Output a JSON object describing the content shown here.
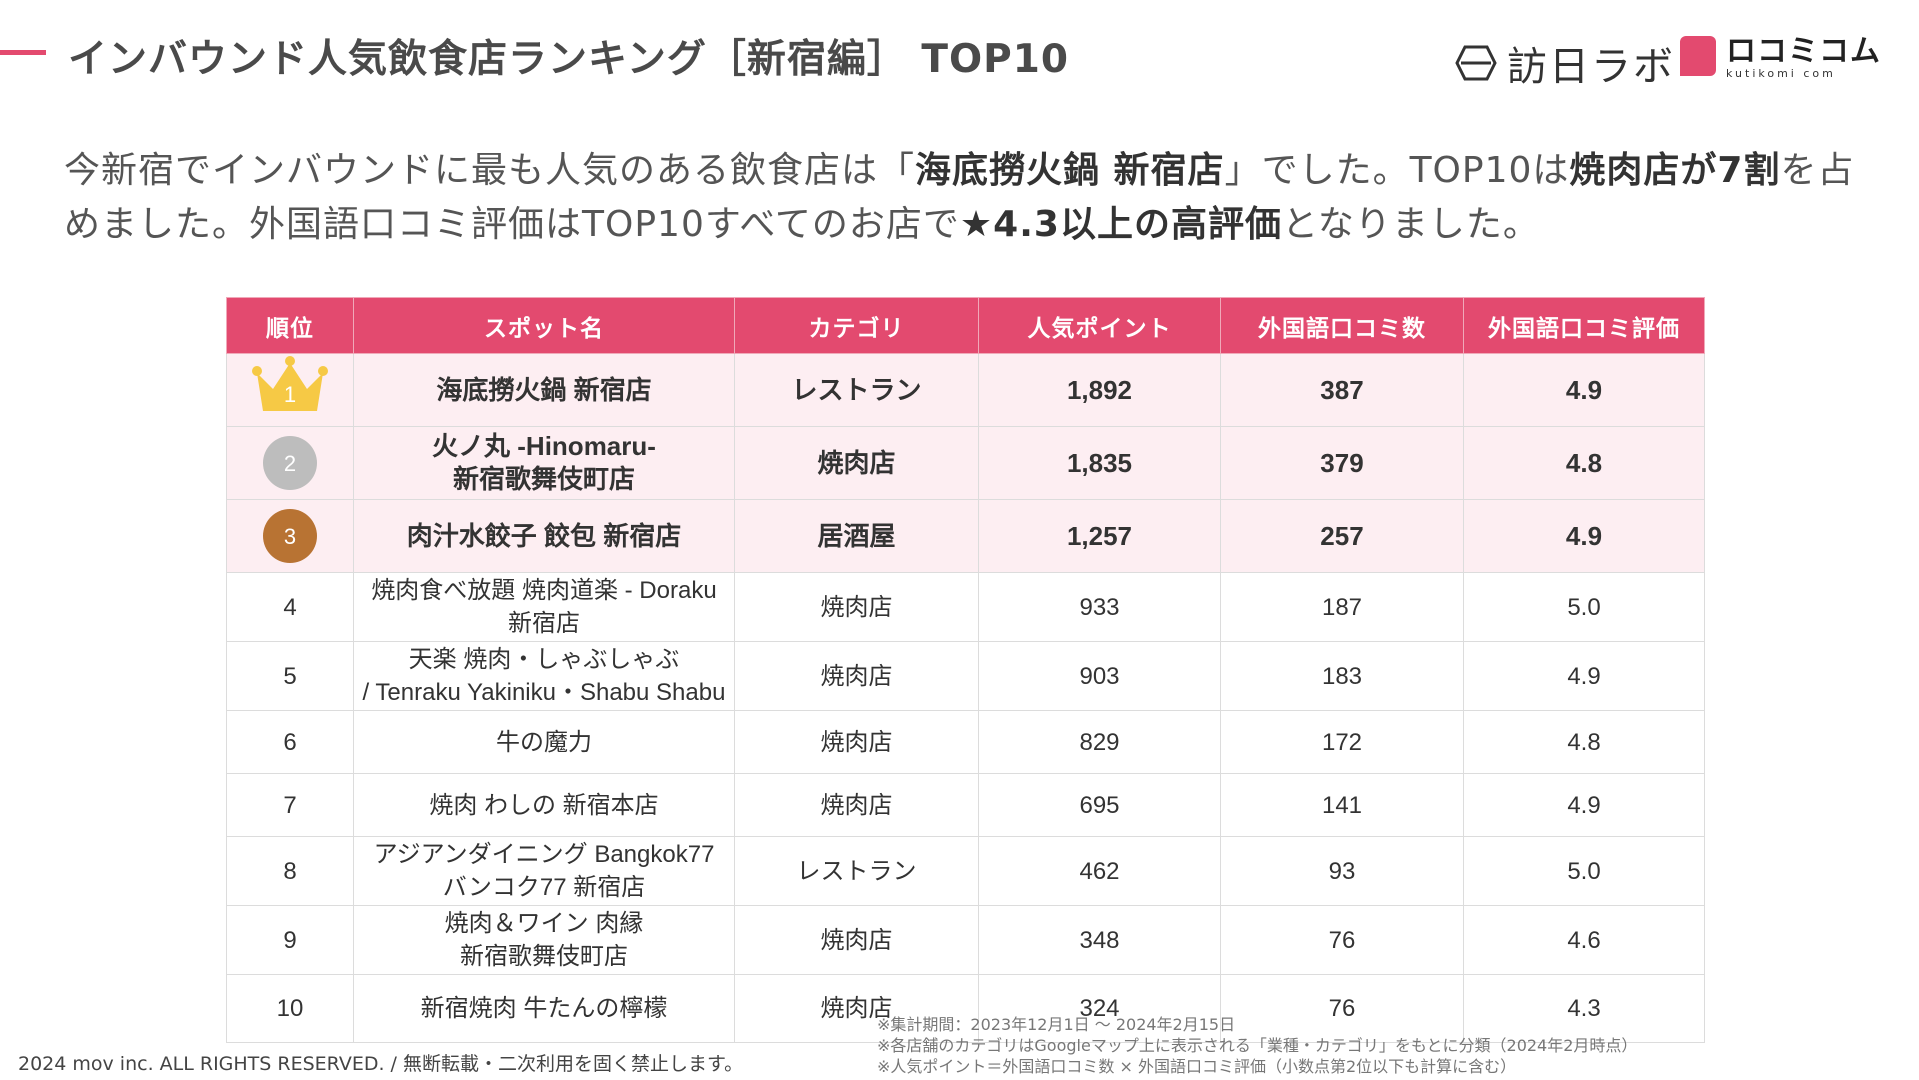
{
  "header": {
    "title": "インバウンド人気飲食店ランキング［新宿編］ TOP10",
    "logo_houlab": "訪日ラボ",
    "logo_kutikomi_main": "ロコミコム",
    "logo_kutikomi_sub": "kutikomi com"
  },
  "summary": {
    "p1": "今新宿でインバウンドに最も人気のある飲食店は「",
    "b1": "海底撈火鍋 新宿店",
    "p2": "」でした。TOP10は",
    "b2": "焼肉店が7割",
    "p3": "を占めました。外国語口コミ評価はTOP10すべてのお店で",
    "b3": "★4.3以上の高評価",
    "p4": "となりました。"
  },
  "table": {
    "headers": [
      "順位",
      "スポット名",
      "カテゴリ",
      "人気ポイント",
      "外国語口コミ数",
      "外国語口コミ評価"
    ],
    "rows": [
      {
        "rank": "1",
        "name_l1": "海底撈火鍋 新宿店",
        "name_l2": "",
        "category": "レストラン",
        "points": "1,892",
        "reviews": "387",
        "rating": "4.9"
      },
      {
        "rank": "2",
        "name_l1": "火ノ丸 -Hinomaru-",
        "name_l2": "新宿歌舞伎町店",
        "category": "焼肉店",
        "points": "1,835",
        "reviews": "379",
        "rating": "4.8"
      },
      {
        "rank": "3",
        "name_l1": "肉汁水餃子 餃包 新宿店",
        "name_l2": "",
        "category": "居酒屋",
        "points": "1,257",
        "reviews": "257",
        "rating": "4.9"
      },
      {
        "rank": "4",
        "name_l1": "焼肉食べ放題 焼肉道楽 - Doraku",
        "name_l2": "新宿店",
        "category": "焼肉店",
        "points": "933",
        "reviews": "187",
        "rating": "5.0"
      },
      {
        "rank": "5",
        "name_l1": "天楽 焼肉・しゃぶしゃぶ",
        "name_l2": "/ Tenraku Yakiniku・Shabu Shabu",
        "category": "焼肉店",
        "points": "903",
        "reviews": "183",
        "rating": "4.9"
      },
      {
        "rank": "6",
        "name_l1": "牛の魔力",
        "name_l2": "",
        "category": "焼肉店",
        "points": "829",
        "reviews": "172",
        "rating": "4.8"
      },
      {
        "rank": "7",
        "name_l1": "焼肉 わしの 新宿本店",
        "name_l2": "",
        "category": "焼肉店",
        "points": "695",
        "reviews": "141",
        "rating": "4.9"
      },
      {
        "rank": "8",
        "name_l1": "アジアンダイニング Bangkok77",
        "name_l2": "バンコク77 新宿店",
        "category": "レストラン",
        "points": "462",
        "reviews": "93",
        "rating": "5.0"
      },
      {
        "rank": "9",
        "name_l1": "焼肉＆ワイン 肉縁",
        "name_l2": "新宿歌舞伎町店",
        "category": "焼肉店",
        "points": "348",
        "reviews": "76",
        "rating": "4.6"
      },
      {
        "rank": "10",
        "name_l1": "新宿焼肉 牛たんの檸檬",
        "name_l2": "",
        "category": "焼肉店",
        "points": "324",
        "reviews": "76",
        "rating": "4.3"
      }
    ]
  },
  "notes": [
    "※集計期間：2023年12月1日 〜 2024年2月15日",
    "※各店舗のカテゴリはGoogleマップ上に表示される「業種・カテゴリ」をもとに分類（2024年2月時点）",
    "※人気ポイント＝外国語口コミ数 × 外国語口コミ評価（小数点第2位以下も計算に含む）"
  ],
  "footer": "2024 mov inc. ALL RIGHTS RESERVED. / 無断転載・二次利用を固く禁止します。",
  "colors": {
    "accent": "#e34a6f",
    "top_row_bg": "#fdeef2",
    "gold": "#f6c945",
    "silver": "#bdbdbd",
    "bronze": "#b87333"
  }
}
